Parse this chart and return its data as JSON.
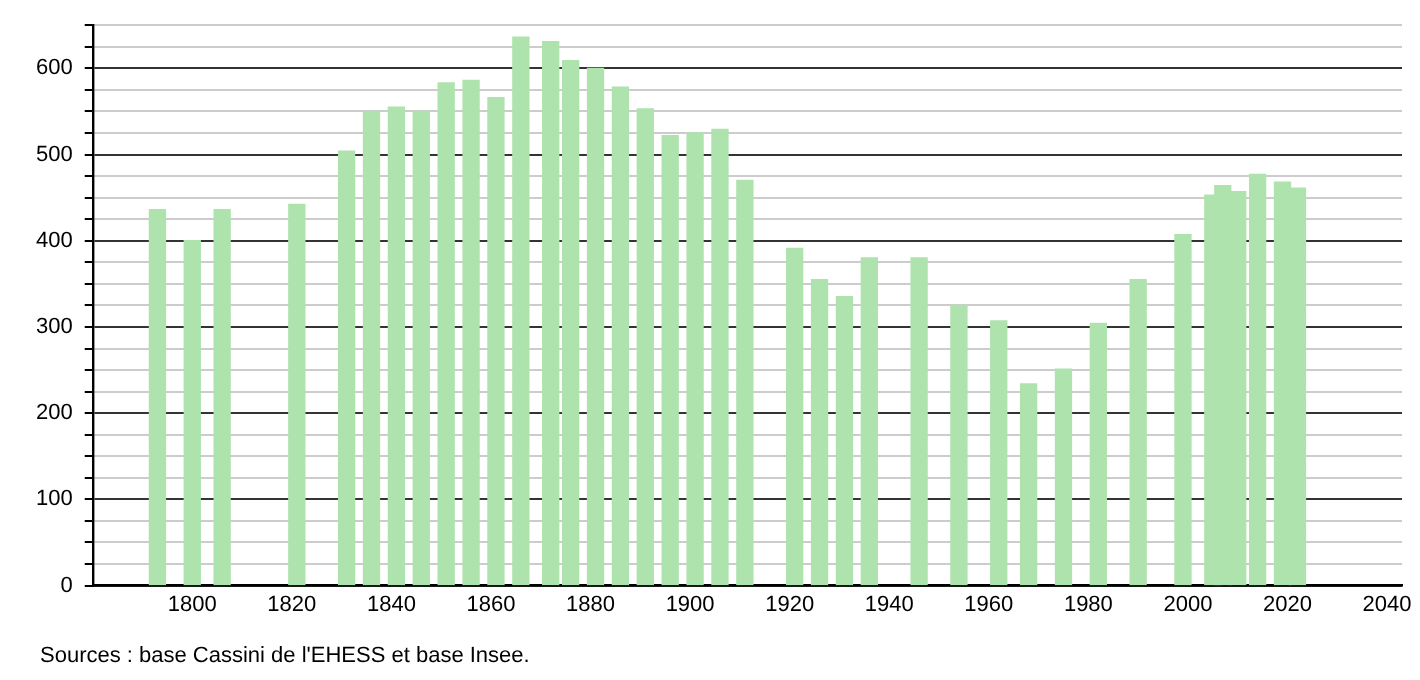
{
  "chart_data": {
    "type": "bar",
    "x": [
      1793,
      1800,
      1806,
      1821,
      1831,
      1836,
      1841,
      1846,
      1851,
      1856,
      1861,
      1866,
      1872,
      1876,
      1881,
      1886,
      1891,
      1896,
      1901,
      1906,
      1911,
      1921,
      1926,
      1931,
      1936,
      1946,
      1954,
      1962,
      1968,
      1975,
      1982,
      1990,
      1999,
      2005,
      2007,
      2010,
      2014,
      2019,
      2022
    ],
    "values": [
      436,
      400,
      436,
      442,
      504,
      550,
      555,
      550,
      583,
      586,
      566,
      636,
      631,
      609,
      600,
      578,
      553,
      522,
      525,
      529,
      470,
      391,
      355,
      335,
      380,
      380,
      325,
      307,
      234,
      251,
      304,
      355,
      407,
      453,
      464,
      457,
      477,
      468,
      461
    ],
    "color": "#aee3ae",
    "xlim": [
      1780,
      2043
    ],
    "xticks": [
      1800,
      1820,
      1840,
      1860,
      1880,
      1900,
      1920,
      1940,
      1960,
      1980,
      2000,
      2020,
      2040
    ],
    "ylim": [
      0,
      650
    ],
    "yticks": [
      0,
      {
        "value": 25,
        "label": null
      },
      {
        "value": 50,
        "label": null
      },
      {
        "value": 75,
        "label": null
      },
      100,
      {
        "value": 125,
        "label": null
      },
      {
        "value": 150,
        "label": null
      },
      {
        "value": 175,
        "label": null
      },
      200,
      {
        "value": 225,
        "label": null
      },
      {
        "value": 250,
        "label": null
      },
      {
        "value": 275,
        "label": null
      },
      300,
      {
        "value": 325,
        "label": null
      },
      {
        "value": 350,
        "label": null
      },
      {
        "value": 375,
        "label": null
      },
      400,
      {
        "value": 425,
        "label": null
      },
      {
        "value": 450,
        "label": null
      },
      {
        "value": 475,
        "label": null
      },
      500,
      {
        "value": 525,
        "label": null
      },
      {
        "value": 550,
        "label": null
      },
      {
        "value": 575,
        "label": null
      },
      600,
      {
        "value": 625,
        "label": null
      },
      {
        "value": 650,
        "label": null
      }
    ],
    "grid": "y",
    "annotations": [
      "Sources : base Cassini de l'EHESS et base Insee."
    ]
  }
}
